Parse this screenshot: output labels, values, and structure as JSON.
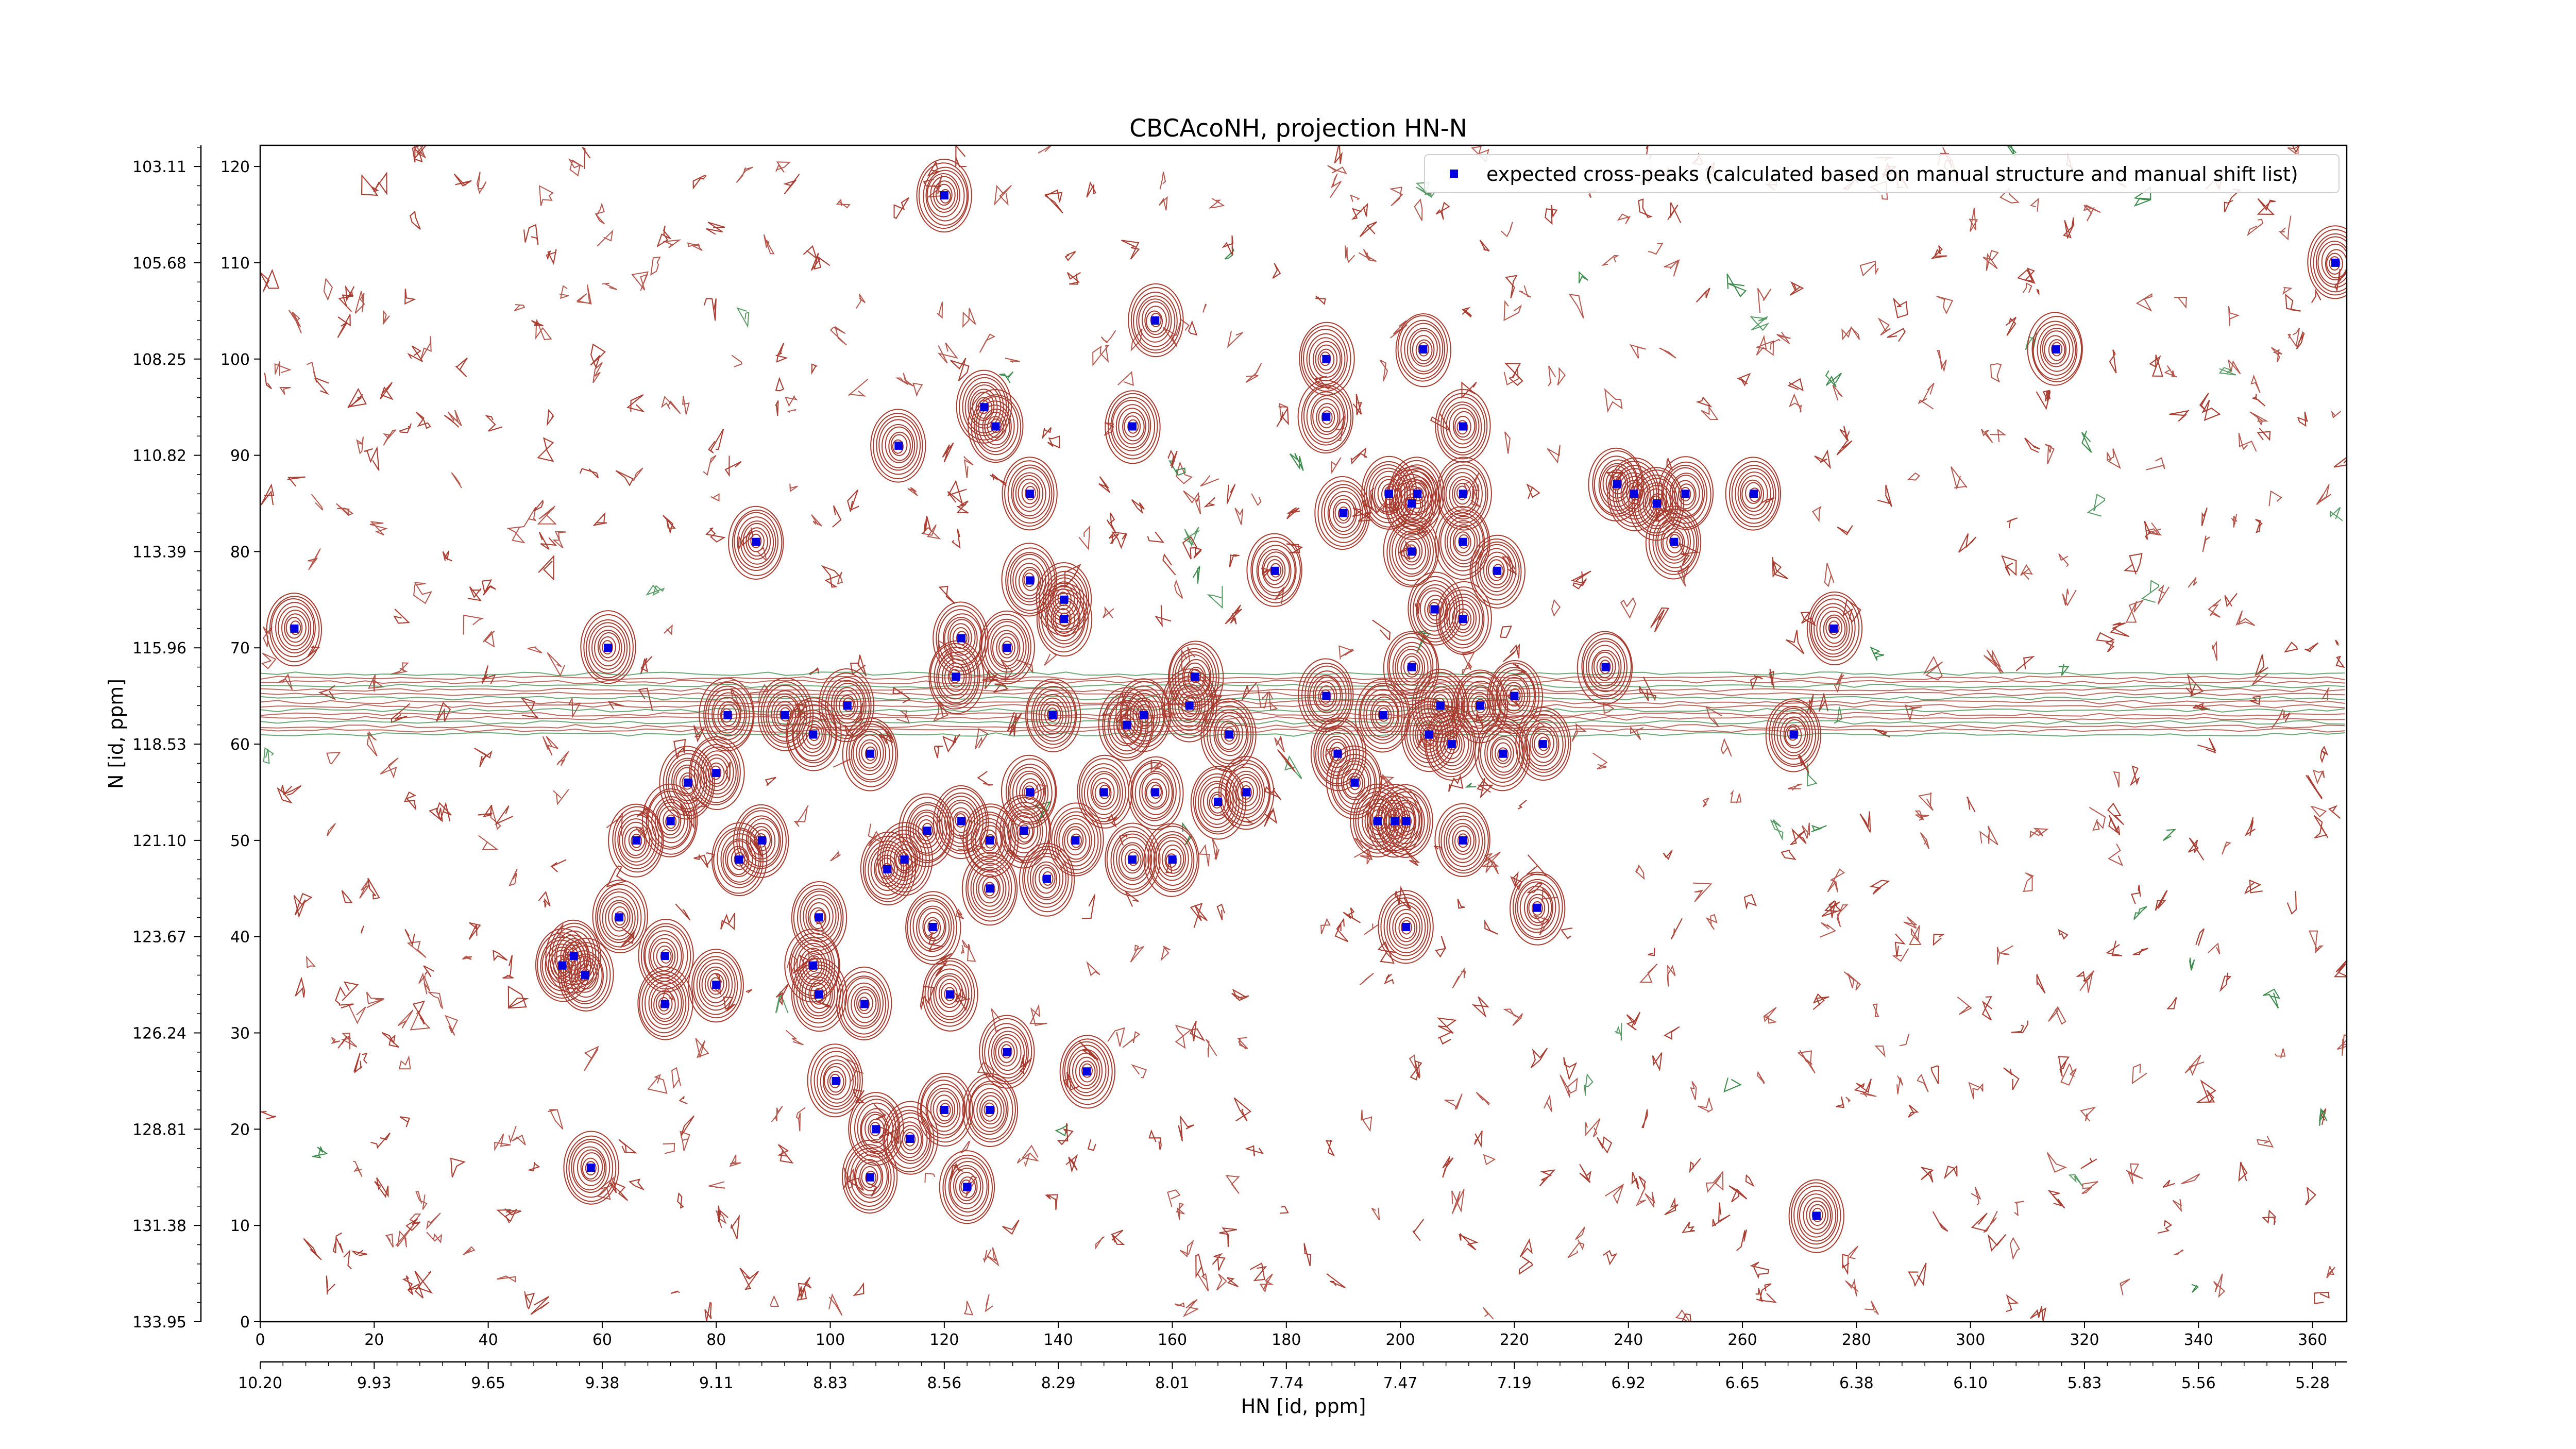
{
  "chart_data": {
    "type": "scatter",
    "title": "CBCAcoNH, projection HN-N",
    "xlabel": "HN [id, ppm]",
    "ylabel": "N [id, ppm]",
    "xlim": [
      0,
      366
    ],
    "ylim": [
      0,
      120
    ],
    "x_index_ticks": [
      "0",
      "20",
      "40",
      "60",
      "80",
      "100",
      "120",
      "140",
      "160",
      "180",
      "200",
      "220",
      "240",
      "260",
      "280",
      "300",
      "320",
      "340",
      "360"
    ],
    "x_ppm_ticks": [
      "10.20",
      "9.93",
      "9.65",
      "9.38",
      "9.11",
      "8.83",
      "8.56",
      "8.29",
      "8.01",
      "7.74",
      "7.47",
      "7.19",
      "6.92",
      "6.65",
      "6.38",
      "6.10",
      "5.83",
      "5.56",
      "5.28"
    ],
    "y_index_ticks": [
      "0",
      "10",
      "20",
      "30",
      "40",
      "50",
      "60",
      "70",
      "80",
      "90",
      "100",
      "110",
      "120"
    ],
    "y_ppm_ticks": [
      "133.95",
      "131.38",
      "128.81",
      "126.24",
      "123.67",
      "121.10",
      "118.53",
      "115.96",
      "113.39",
      "110.82",
      "108.25",
      "105.68",
      "103.11"
    ],
    "legend": {
      "label": "expected cross-peaks (calculated based on manual structure and manual shift list)",
      "placement": "upper right"
    },
    "colors": {
      "positive_contours": "#a83a2e",
      "negative_contours": "#3a8a4a",
      "markers": "#0000e0"
    },
    "series": [
      {
        "name": "expected cross-peaks (calculated based on manual structure and manual shift list)",
        "points": [
          [
            120,
            117
          ],
          [
            364,
            110
          ],
          [
            157,
            104
          ],
          [
            315,
            101
          ],
          [
            187,
            100
          ],
          [
            204,
            101
          ],
          [
            127,
            95
          ],
          [
            187,
            94
          ],
          [
            129,
            93
          ],
          [
            153,
            93
          ],
          [
            211,
            93
          ],
          [
            112,
            91
          ],
          [
            135,
            86
          ],
          [
            211,
            86
          ],
          [
            238,
            87
          ],
          [
            241,
            86
          ],
          [
            245,
            85
          ],
          [
            250,
            86
          ],
          [
            262,
            86
          ],
          [
            190,
            84
          ],
          [
            198,
            86
          ],
          [
            202,
            85
          ],
          [
            203,
            86
          ],
          [
            211,
            81
          ],
          [
            87,
            81
          ],
          [
            248,
            81
          ],
          [
            202,
            80
          ],
          [
            178,
            78
          ],
          [
            217,
            78
          ],
          [
            141,
            75
          ],
          [
            135,
            77
          ],
          [
            206,
            74
          ],
          [
            211,
            73
          ],
          [
            276,
            72
          ],
          [
            6,
            72
          ],
          [
            141,
            73
          ],
          [
            61,
            70
          ],
          [
            123,
            71
          ],
          [
            131,
            70
          ],
          [
            122,
            67
          ],
          [
            164,
            67
          ],
          [
            236,
            68
          ],
          [
            202,
            68
          ],
          [
            187,
            65
          ],
          [
            103,
            64
          ],
          [
            92,
            63
          ],
          [
            82,
            63
          ],
          [
            97,
            61
          ],
          [
            152,
            62
          ],
          [
            155,
            63
          ],
          [
            163,
            64
          ],
          [
            170,
            61
          ],
          [
            197,
            63
          ],
          [
            207,
            64
          ],
          [
            214,
            64
          ],
          [
            220,
            65
          ],
          [
            139,
            63
          ],
          [
            205,
            61
          ],
          [
            209,
            60
          ],
          [
            218,
            59
          ],
          [
            225,
            60
          ],
          [
            107,
            59
          ],
          [
            269,
            61
          ],
          [
            189,
            59
          ],
          [
            80,
            57
          ],
          [
            75,
            56
          ],
          [
            192,
            56
          ],
          [
            135,
            55
          ],
          [
            173,
            55
          ],
          [
            148,
            55
          ],
          [
            157,
            55
          ],
          [
            117,
            51
          ],
          [
            128,
            50
          ],
          [
            168,
            54
          ],
          [
            196,
            52
          ],
          [
            199,
            52
          ],
          [
            72,
            52
          ],
          [
            66,
            50
          ],
          [
            88,
            50
          ],
          [
            123,
            52
          ],
          [
            134,
            51
          ],
          [
            143,
            50
          ],
          [
            153,
            48
          ],
          [
            160,
            48
          ],
          [
            211,
            50
          ],
          [
            201,
            52
          ],
          [
            84,
            48
          ],
          [
            110,
            47
          ],
          [
            113,
            48
          ],
          [
            138,
            46
          ],
          [
            128,
            45
          ],
          [
            63,
            42
          ],
          [
            98,
            42
          ],
          [
            118,
            41
          ],
          [
            201,
            41
          ],
          [
            224,
            43
          ],
          [
            55,
            38
          ],
          [
            71,
            38
          ],
          [
            53,
            37
          ],
          [
            97,
            37
          ],
          [
            57,
            36
          ],
          [
            80,
            35
          ],
          [
            98,
            34
          ],
          [
            71,
            33
          ],
          [
            121,
            34
          ],
          [
            106,
            33
          ],
          [
            131,
            28
          ],
          [
            145,
            26
          ],
          [
            101,
            25
          ],
          [
            120,
            22
          ],
          [
            128,
            22
          ],
          [
            108,
            20
          ],
          [
            114,
            19
          ],
          [
            58,
            16
          ],
          [
            107,
            15
          ],
          [
            124,
            14
          ],
          [
            273,
            11
          ]
        ]
      }
    ]
  }
}
